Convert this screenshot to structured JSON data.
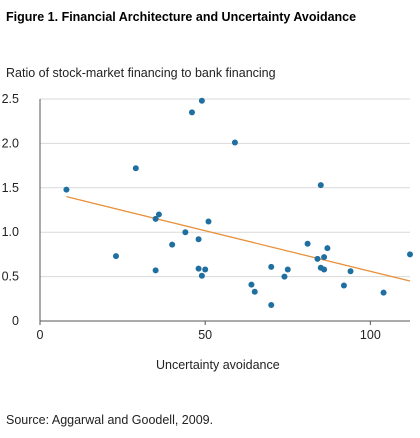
{
  "title": "Figure 1. Financial Architecture and Uncertainty Avoidance",
  "source": "Source: Aggarwal and Goodell, 2009.",
  "colors": {
    "points": "#1f6fa0",
    "trendline": "#e8913a",
    "grid": "#d9d9d9",
    "axis": "#555555"
  },
  "chart_data": {
    "type": "scatter",
    "title": "Figure 1. Financial Architecture and Uncertainty Avoidance",
    "xlabel": "Uncertainty avoidance",
    "ylabel": "Ratio of stock-market financing to bank financing",
    "xlim": [
      0,
      112
    ],
    "ylim": [
      0,
      2.5
    ],
    "x_ticks": [
      0,
      50,
      100
    ],
    "x_tick_labels": [
      "0",
      "50",
      "100"
    ],
    "y_ticks": [
      0,
      0.5,
      1.0,
      1.5,
      2.0,
      2.5
    ],
    "y_tick_labels": [
      "0",
      "0.5",
      "1.0",
      "1.5",
      "2.0",
      "2.5"
    ],
    "grid": "horizontal",
    "points": [
      {
        "x": 8,
        "y": 1.48
      },
      {
        "x": 23,
        "y": 0.73
      },
      {
        "x": 29,
        "y": 1.72
      },
      {
        "x": 35,
        "y": 0.57
      },
      {
        "x": 35,
        "y": 1.15
      },
      {
        "x": 36,
        "y": 1.2
      },
      {
        "x": 40,
        "y": 0.86
      },
      {
        "x": 44,
        "y": 1.0
      },
      {
        "x": 46,
        "y": 2.35
      },
      {
        "x": 48,
        "y": 0.92
      },
      {
        "x": 48,
        "y": 0.59
      },
      {
        "x": 49,
        "y": 2.48
      },
      {
        "x": 49,
        "y": 0.51
      },
      {
        "x": 50,
        "y": 0.58
      },
      {
        "x": 51,
        "y": 1.12
      },
      {
        "x": 59,
        "y": 2.01
      },
      {
        "x": 64,
        "y": 0.41
      },
      {
        "x": 65,
        "y": 0.33
      },
      {
        "x": 70,
        "y": 0.61
      },
      {
        "x": 70,
        "y": 0.18
      },
      {
        "x": 74,
        "y": 0.5
      },
      {
        "x": 75,
        "y": 0.58
      },
      {
        "x": 81,
        "y": 0.87
      },
      {
        "x": 84,
        "y": 0.7
      },
      {
        "x": 85,
        "y": 1.53
      },
      {
        "x": 85,
        "y": 0.6
      },
      {
        "x": 86,
        "y": 0.58
      },
      {
        "x": 86,
        "y": 0.72
      },
      {
        "x": 87,
        "y": 0.82
      },
      {
        "x": 92,
        "y": 0.4
      },
      {
        "x": 94,
        "y": 0.56
      },
      {
        "x": 104,
        "y": 0.32
      },
      {
        "x": 112,
        "y": 0.75
      }
    ],
    "trendline": {
      "x": [
        8,
        112
      ],
      "y": [
        1.4,
        0.45
      ]
    }
  }
}
